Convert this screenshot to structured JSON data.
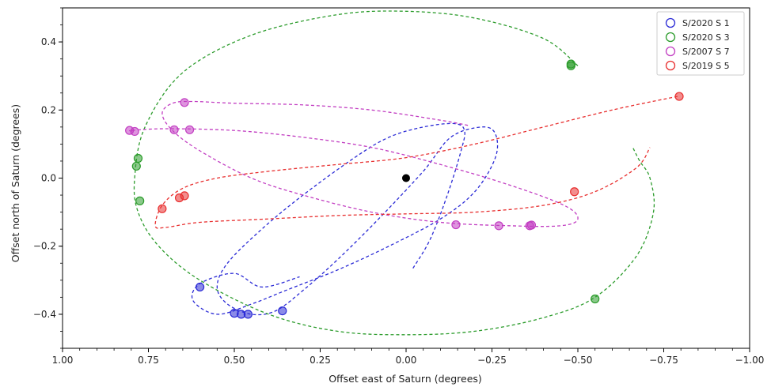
{
  "chart_data": {
    "type": "scatter",
    "xlabel": "Offset east of Saturn (degrees)",
    "ylabel": "Offset north of Saturn (degrees)",
    "xlim": [
      1.0,
      -1.0
    ],
    "ylim": [
      -0.5,
      0.5
    ],
    "x_ticks": [
      1.0,
      0.75,
      0.5,
      0.25,
      0.0,
      -0.25,
      -0.5,
      -0.75,
      -1.0
    ],
    "x_tick_labels": [
      "1.00",
      "0.75",
      "0.50",
      "0.25",
      "0.00",
      "−0.25",
      "−0.50",
      "−0.75",
      "−1.00"
    ],
    "y_ticks": [
      -0.4,
      -0.2,
      0.0,
      0.2,
      0.4
    ],
    "y_tick_labels": [
      "−0.4",
      "−0.2",
      "0.0",
      "0.2",
      "0.4"
    ],
    "grid": false,
    "legend_position": "top-right",
    "saturn": {
      "x": 0.0,
      "y": 0.0,
      "color": "#000000"
    },
    "series": [
      {
        "name": "S/2020 S 1",
        "color": "#2b2bd6",
        "path": [
          [
            -0.02,
            -0.265
          ],
          [
            -0.07,
            -0.18
          ],
          [
            -0.12,
            -0.05
          ],
          [
            -0.16,
            0.08
          ],
          [
            -0.17,
            0.14
          ],
          [
            -0.14,
            0.16
          ],
          [
            -0.05,
            0.15
          ],
          [
            0.05,
            0.12
          ],
          [
            0.15,
            0.06
          ],
          [
            0.3,
            -0.05
          ],
          [
            0.42,
            -0.15
          ],
          [
            0.52,
            -0.25
          ],
          [
            0.55,
            -0.32
          ],
          [
            0.52,
            -0.37
          ],
          [
            0.45,
            -0.4
          ],
          [
            0.38,
            -0.39
          ],
          [
            0.3,
            -0.33
          ],
          [
            0.2,
            -0.24
          ],
          [
            0.08,
            -0.12
          ],
          [
            -0.05,
            0.02
          ],
          [
            -0.13,
            0.12
          ],
          [
            -0.22,
            0.15
          ],
          [
            -0.26,
            0.13
          ],
          [
            -0.26,
            0.06
          ],
          [
            -0.2,
            -0.04
          ],
          [
            -0.1,
            -0.12
          ],
          [
            0.05,
            -0.2
          ],
          [
            0.2,
            -0.27
          ],
          [
            0.35,
            -0.33
          ],
          [
            0.45,
            -0.37
          ],
          [
            0.55,
            -0.4
          ],
          [
            0.62,
            -0.36
          ],
          [
            0.6,
            -0.31
          ],
          [
            0.5,
            -0.28
          ],
          [
            0.42,
            -0.32
          ],
          [
            0.31,
            -0.29
          ]
        ],
        "markers": [
          [
            0.6,
            -0.32
          ],
          [
            0.5,
            -0.397
          ],
          [
            0.48,
            -0.4
          ],
          [
            0.46,
            -0.4
          ],
          [
            0.36,
            -0.39
          ]
        ]
      },
      {
        "name": "S/2020 S 3",
        "color": "#2c9c2c",
        "path": [
          [
            -0.5,
            0.33
          ],
          [
            -0.4,
            0.41
          ],
          [
            -0.2,
            0.47
          ],
          [
            0.0,
            0.49
          ],
          [
            0.2,
            0.48
          ],
          [
            0.45,
            0.42
          ],
          [
            0.65,
            0.31
          ],
          [
            0.76,
            0.15
          ],
          [
            0.79,
            0.0
          ],
          [
            0.78,
            -0.1
          ],
          [
            0.72,
            -0.2
          ],
          [
            0.6,
            -0.3
          ],
          [
            0.4,
            -0.4
          ],
          [
            0.2,
            -0.45
          ],
          [
            0.0,
            -0.46
          ],
          [
            -0.2,
            -0.45
          ],
          [
            -0.4,
            -0.41
          ],
          [
            -0.55,
            -0.35
          ],
          [
            -0.67,
            -0.23
          ],
          [
            -0.72,
            -0.1
          ],
          [
            -0.71,
            0.0
          ],
          [
            -0.68,
            0.05
          ],
          [
            -0.66,
            0.09
          ]
        ],
        "markers": [
          [
            -0.48,
            0.335
          ],
          [
            -0.48,
            0.33
          ],
          [
            0.78,
            0.058
          ],
          [
            0.785,
            0.035
          ],
          [
            0.775,
            -0.067
          ],
          [
            -0.55,
            -0.355
          ]
        ]
      },
      {
        "name": "S/2007 S 7",
        "color": "#c23ec2",
        "path": [
          [
            -0.18,
            0.155
          ],
          [
            -0.1,
            0.17
          ],
          [
            0.1,
            0.2
          ],
          [
            0.3,
            0.215
          ],
          [
            0.5,
            0.22
          ],
          [
            0.62,
            0.225
          ],
          [
            0.68,
            0.22
          ],
          [
            0.71,
            0.19
          ],
          [
            0.68,
            0.14
          ],
          [
            0.6,
            0.08
          ],
          [
            0.45,
            0.0
          ],
          [
            0.3,
            -0.05
          ],
          [
            0.1,
            -0.1
          ],
          [
            -0.1,
            -0.13
          ],
          [
            -0.3,
            -0.14
          ],
          [
            -0.45,
            -0.14
          ],
          [
            -0.5,
            -0.12
          ],
          [
            -0.46,
            -0.08
          ],
          [
            -0.3,
            -0.02
          ],
          [
            -0.1,
            0.04
          ],
          [
            0.1,
            0.09
          ],
          [
            0.3,
            0.12
          ],
          [
            0.5,
            0.14
          ],
          [
            0.7,
            0.145
          ],
          [
            0.8,
            0.14
          ],
          [
            0.79,
            0.138
          ]
        ],
        "markers": [
          [
            0.645,
            0.222
          ],
          [
            0.805,
            0.14
          ],
          [
            0.79,
            0.137
          ],
          [
            0.675,
            0.142
          ],
          [
            0.63,
            0.142
          ],
          [
            -0.145,
            -0.137
          ],
          [
            -0.27,
            -0.14
          ],
          [
            -0.36,
            -0.14
          ],
          [
            -0.365,
            -0.138
          ]
        ]
      },
      {
        "name": "S/2019 S 5",
        "color": "#e83030",
        "path": [
          [
            -0.79,
            0.24
          ],
          [
            -0.6,
            0.2
          ],
          [
            -0.4,
            0.15
          ],
          [
            -0.2,
            0.1
          ],
          [
            0.0,
            0.06
          ],
          [
            0.2,
            0.04
          ],
          [
            0.4,
            0.02
          ],
          [
            0.55,
            0.0
          ],
          [
            0.65,
            -0.03
          ],
          [
            0.71,
            -0.08
          ],
          [
            0.73,
            -0.14
          ],
          [
            0.7,
            -0.145
          ],
          [
            0.6,
            -0.13
          ],
          [
            0.4,
            -0.12
          ],
          [
            0.2,
            -0.11
          ],
          [
            0.0,
            -0.105
          ],
          [
            -0.2,
            -0.1
          ],
          [
            -0.4,
            -0.08
          ],
          [
            -0.55,
            -0.04
          ],
          [
            -0.67,
            0.03
          ],
          [
            -0.71,
            0.09
          ]
        ],
        "markers": [
          [
            -0.795,
            0.24
          ],
          [
            -0.49,
            -0.04
          ],
          [
            0.71,
            -0.09
          ],
          [
            0.66,
            -0.058
          ],
          [
            0.645,
            -0.052
          ]
        ]
      }
    ]
  }
}
